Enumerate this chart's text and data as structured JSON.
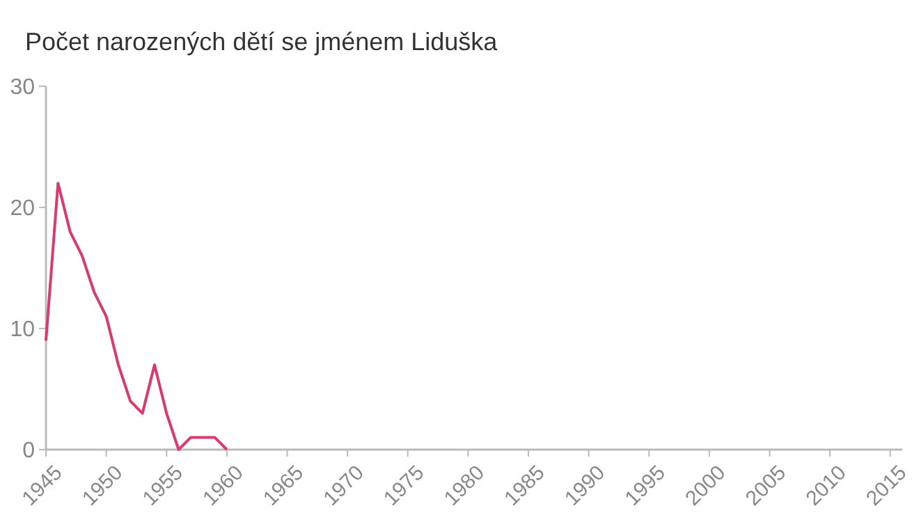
{
  "chart_data": {
    "type": "line",
    "title": "Počet narozených dětí se jménem Liduška",
    "x": [
      1945,
      1946,
      1947,
      1948,
      1949,
      1950,
      1951,
      1952,
      1953,
      1954,
      1955,
      1956,
      1957,
      1958,
      1959,
      1960
    ],
    "series": [
      {
        "color": "#dc3a6b",
        "values": [
          9,
          22,
          18,
          16,
          13,
          11,
          7,
          4,
          3,
          7,
          3,
          0,
          1,
          1,
          1,
          0
        ]
      }
    ],
    "xlim": [
      1945,
      2016
    ],
    "xticks": [
      1945,
      1950,
      1955,
      1960,
      1965,
      1970,
      1975,
      1980,
      1985,
      1990,
      1995,
      2000,
      2005,
      2010,
      2015
    ],
    "ylim": [
      0,
      30
    ],
    "yticks": [
      0,
      10,
      20,
      30
    ],
    "grid": false,
    "marker": "none",
    "line_style": "solid"
  }
}
